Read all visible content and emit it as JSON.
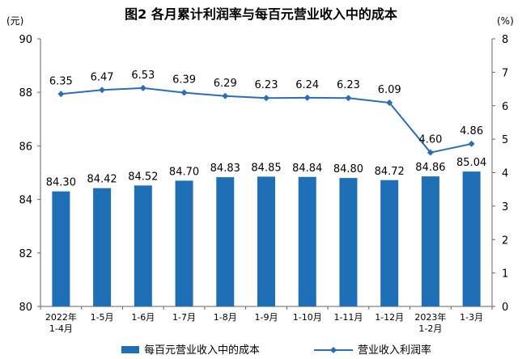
{
  "title": "图2 各月累计利润率与每百元营业收入中的成本",
  "colors": {
    "bar": "#1F6FB7",
    "line": "#2A6EB5"
  },
  "chart_data": {
    "type": "bar",
    "title": "图2 各月累计利润率与每百元营业收入中的成本",
    "categories": [
      [
        "2022年",
        "1-4月"
      ],
      [
        "1-5月"
      ],
      [
        "1-6月"
      ],
      [
        "1-7月"
      ],
      [
        "1-8月"
      ],
      [
        "1-9月"
      ],
      [
        "1-10月"
      ],
      [
        "1-11月"
      ],
      [
        "1-12月"
      ],
      [
        "2023年",
        "1-2月"
      ],
      [
        "1-3月"
      ]
    ],
    "left_axis": {
      "unit": "(元)",
      "ylim": [
        80,
        90
      ],
      "ticks": [
        80,
        82,
        84,
        86,
        88,
        90
      ]
    },
    "right_axis": {
      "unit": "(%)",
      "ylim": [
        0,
        8
      ],
      "ticks": [
        0,
        1,
        2,
        3,
        4,
        5,
        6,
        7,
        8
      ]
    },
    "series": [
      {
        "name": "每百元营业收入中的成本",
        "type": "bar",
        "axis": "left",
        "values": [
          84.3,
          84.42,
          84.52,
          84.7,
          84.83,
          84.85,
          84.84,
          84.8,
          84.72,
          84.86,
          85.04
        ],
        "labels": [
          "84.30",
          "84.42",
          "84.52",
          "84.70",
          "84.83",
          "84.85",
          "84.84",
          "84.80",
          "84.72",
          "84.86",
          "85.04"
        ]
      },
      {
        "name": "营业收入利润率",
        "type": "line",
        "axis": "right",
        "values": [
          6.35,
          6.47,
          6.53,
          6.39,
          6.29,
          6.23,
          6.24,
          6.23,
          6.09,
          4.6,
          4.86
        ],
        "labels": [
          "6.35",
          "6.47",
          "6.53",
          "6.39",
          "6.29",
          "6.23",
          "6.24",
          "6.23",
          "6.09",
          "4.60",
          "4.86"
        ]
      }
    ],
    "legend": "bottom",
    "grid": false
  }
}
